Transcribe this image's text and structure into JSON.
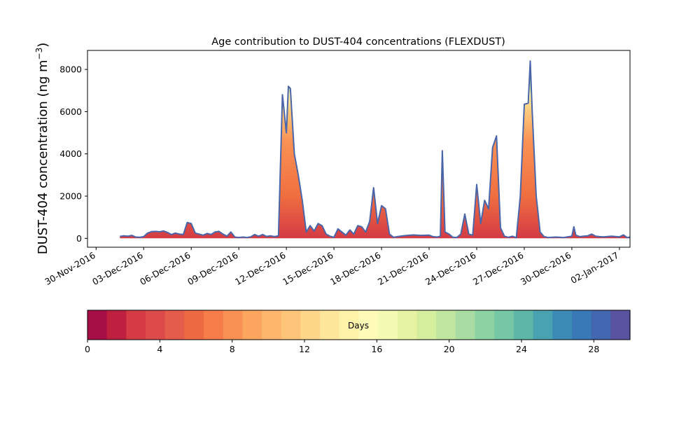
{
  "chart_data": {
    "type": "area",
    "title": "Age contribution to DUST-404 concentrations (FLEXDUST)",
    "ylabel_main": "DUST-404 concentration (ng m",
    "ylabel_exp": "−3",
    "ylabel_close": ")",
    "xlabel": "",
    "xlim": [
      "2016-11-29T11:00",
      "2017-01-02T16:00"
    ],
    "ylim": [
      -420,
      8900
    ],
    "x_ticks": [
      "30-Nov-2016",
      "03-Dec-2016",
      "06-Dec-2016",
      "09-Dec-2016",
      "12-Dec-2016",
      "15-Dec-2016",
      "18-Dec-2016",
      "21-Dec-2016",
      "24-Dec-2016",
      "27-Dec-2016",
      "30-Dec-2016",
      "02-Jan-2017"
    ],
    "y_ticks": [
      "0",
      "2000",
      "4000",
      "6000",
      "8000"
    ],
    "y_tick_values": [
      0,
      2000,
      4000,
      6000,
      8000
    ],
    "series": [
      {
        "color": "#4a65a9",
        "points": [
          [
            "2016-12-01T12:00",
            90
          ],
          [
            "2016-12-01T18:00",
            120
          ],
          [
            "2016-12-02T00:00",
            100
          ],
          [
            "2016-12-02T06:00",
            140
          ],
          [
            "2016-12-02T12:00",
            60
          ],
          [
            "2016-12-02T18:00",
            50
          ],
          [
            "2016-12-03T00:00",
            80
          ],
          [
            "2016-12-03T06:00",
            250
          ],
          [
            "2016-12-03T12:00",
            320
          ],
          [
            "2016-12-03T18:00",
            330
          ],
          [
            "2016-12-04T00:00",
            310
          ],
          [
            "2016-12-04T06:00",
            350
          ],
          [
            "2016-12-04T12:00",
            280
          ],
          [
            "2016-12-04T18:00",
            180
          ],
          [
            "2016-12-05T00:00",
            250
          ],
          [
            "2016-12-05T06:00",
            200
          ],
          [
            "2016-12-05T12:00",
            180
          ],
          [
            "2016-12-05T18:00",
            750
          ],
          [
            "2016-12-06T00:00",
            700
          ],
          [
            "2016-12-06T06:00",
            250
          ],
          [
            "2016-12-06T12:00",
            200
          ],
          [
            "2016-12-06T18:00",
            150
          ],
          [
            "2016-12-07T00:00",
            230
          ],
          [
            "2016-12-07T06:00",
            180
          ],
          [
            "2016-12-07T12:00",
            300
          ],
          [
            "2016-12-07T18:00",
            330
          ],
          [
            "2016-12-08T00:00",
            200
          ],
          [
            "2016-12-08T06:00",
            100
          ],
          [
            "2016-12-08T12:00",
            300
          ],
          [
            "2016-12-08T18:00",
            60
          ],
          [
            "2016-12-09T00:00",
            40
          ],
          [
            "2016-12-09T06:00",
            60
          ],
          [
            "2016-12-09T12:00",
            40
          ],
          [
            "2016-12-09T18:00",
            70
          ],
          [
            "2016-12-10T00:00",
            180
          ],
          [
            "2016-12-10T06:00",
            100
          ],
          [
            "2016-12-10T12:00",
            180
          ],
          [
            "2016-12-10T18:00",
            90
          ],
          [
            "2016-12-11T00:00",
            120
          ],
          [
            "2016-12-11T06:00",
            80
          ],
          [
            "2016-12-11T12:00",
            120
          ],
          [
            "2016-12-11T18:00",
            6800
          ],
          [
            "2016-12-12T00:00",
            5000
          ],
          [
            "2016-12-12T03:00",
            7200
          ],
          [
            "2016-12-12T06:00",
            7100
          ],
          [
            "2016-12-12T12:00",
            4000
          ],
          [
            "2016-12-12T18:00",
            3000
          ],
          [
            "2016-12-13T00:00",
            1800
          ],
          [
            "2016-12-13T06:00",
            300
          ],
          [
            "2016-12-13T12:00",
            600
          ],
          [
            "2016-12-13T18:00",
            350
          ],
          [
            "2016-12-14T00:00",
            700
          ],
          [
            "2016-12-14T06:00",
            600
          ],
          [
            "2016-12-14T12:00",
            200
          ],
          [
            "2016-12-14T18:00",
            100
          ],
          [
            "2016-12-15T00:00",
            50
          ],
          [
            "2016-12-15T06:00",
            450
          ],
          [
            "2016-12-15T12:00",
            300
          ],
          [
            "2016-12-15T18:00",
            150
          ],
          [
            "2016-12-16T00:00",
            400
          ],
          [
            "2016-12-16T06:00",
            200
          ],
          [
            "2016-12-16T12:00",
            600
          ],
          [
            "2016-12-16T18:00",
            550
          ],
          [
            "2016-12-17T00:00",
            300
          ],
          [
            "2016-12-17T06:00",
            800
          ],
          [
            "2016-12-17T12:00",
            2400
          ],
          [
            "2016-12-17T18:00",
            700
          ],
          [
            "2016-12-18T00:00",
            1550
          ],
          [
            "2016-12-18T06:00",
            1400
          ],
          [
            "2016-12-18T12:00",
            200
          ],
          [
            "2016-12-18T18:00",
            50
          ],
          [
            "2016-12-19T00:00",
            80
          ],
          [
            "2016-12-19T12:00",
            130
          ],
          [
            "2016-12-20T00:00",
            160
          ],
          [
            "2016-12-20T12:00",
            140
          ],
          [
            "2016-12-21T00:00",
            150
          ],
          [
            "2016-12-21T06:00",
            80
          ],
          [
            "2016-12-21T12:00",
            60
          ],
          [
            "2016-12-21T17:00",
            100
          ],
          [
            "2016-12-21T20:00",
            4150
          ],
          [
            "2016-12-22T00:00",
            300
          ],
          [
            "2016-12-22T06:00",
            200
          ],
          [
            "2016-12-22T12:00",
            50
          ],
          [
            "2016-12-22T18:00",
            40
          ],
          [
            "2016-12-23T00:00",
            200
          ],
          [
            "2016-12-23T06:00",
            1150
          ],
          [
            "2016-12-23T12:00",
            200
          ],
          [
            "2016-12-23T18:00",
            150
          ],
          [
            "2016-12-24T00:00",
            2550
          ],
          [
            "2016-12-24T06:00",
            700
          ],
          [
            "2016-12-24T12:00",
            1800
          ],
          [
            "2016-12-24T18:00",
            1400
          ],
          [
            "2016-12-25T00:00",
            4300
          ],
          [
            "2016-12-25T06:00",
            4850
          ],
          [
            "2016-12-25T12:00",
            500
          ],
          [
            "2016-12-25T18:00",
            100
          ],
          [
            "2016-12-26T00:00",
            50
          ],
          [
            "2016-12-26T06:00",
            100
          ],
          [
            "2016-12-26T12:00",
            30
          ],
          [
            "2016-12-26T18:00",
            2000
          ],
          [
            "2016-12-27T00:00",
            6350
          ],
          [
            "2016-12-27T06:00",
            6400
          ],
          [
            "2016-12-27T09:00",
            8400
          ],
          [
            "2016-12-27T12:00",
            6000
          ],
          [
            "2016-12-27T18:00",
            2000
          ],
          [
            "2016-12-28T00:00",
            300
          ],
          [
            "2016-12-28T06:00",
            80
          ],
          [
            "2016-12-28T12:00",
            40
          ],
          [
            "2016-12-29T00:00",
            60
          ],
          [
            "2016-12-29T12:00",
            40
          ],
          [
            "2016-12-30T00:00",
            100
          ],
          [
            "2016-12-30T03:00",
            550
          ],
          [
            "2016-12-30T06:00",
            150
          ],
          [
            "2016-12-30T12:00",
            80
          ],
          [
            "2016-12-30T18:00",
            100
          ],
          [
            "2016-12-31T00:00",
            120
          ],
          [
            "2016-12-31T06:00",
            200
          ],
          [
            "2016-12-31T12:00",
            100
          ],
          [
            "2016-12-31T18:00",
            80
          ],
          [
            "2017-01-01T00:00",
            70
          ],
          [
            "2017-01-01T12:00",
            100
          ],
          [
            "2017-01-02T00:00",
            70
          ],
          [
            "2017-01-02T06:00",
            160
          ],
          [
            "2017-01-02T12:00",
            30
          ],
          [
            "2017-01-02T18:00",
            80
          ],
          [
            "2017-01-03T00:00",
            60
          ]
        ]
      }
    ],
    "colorbar": {
      "label": "Days",
      "range": [
        0,
        30
      ],
      "ticks": [
        "0",
        "4",
        "8",
        "12",
        "16",
        "20",
        "24",
        "28"
      ],
      "tick_values": [
        0,
        4,
        8,
        12,
        16,
        20,
        24,
        28
      ],
      "colors": [
        "#a50f45",
        "#c0203f",
        "#d43b44",
        "#dc4b4a",
        "#e45c4a",
        "#ee6a42",
        "#f67c4a",
        "#f99154",
        "#fba55e",
        "#fdb66b",
        "#fec57a",
        "#fed789",
        "#fee79a",
        "#fef3a8",
        "#fdfbb6",
        "#f4fab3",
        "#e5f3a2",
        "#d4ee9d",
        "#bfe59f",
        "#a8dca2",
        "#8dd2a3",
        "#76c7a5",
        "#5eb6a9",
        "#49a2af",
        "#3b8bb6",
        "#3a79b8",
        "#4266b0",
        "#5a53a2"
      ]
    }
  }
}
